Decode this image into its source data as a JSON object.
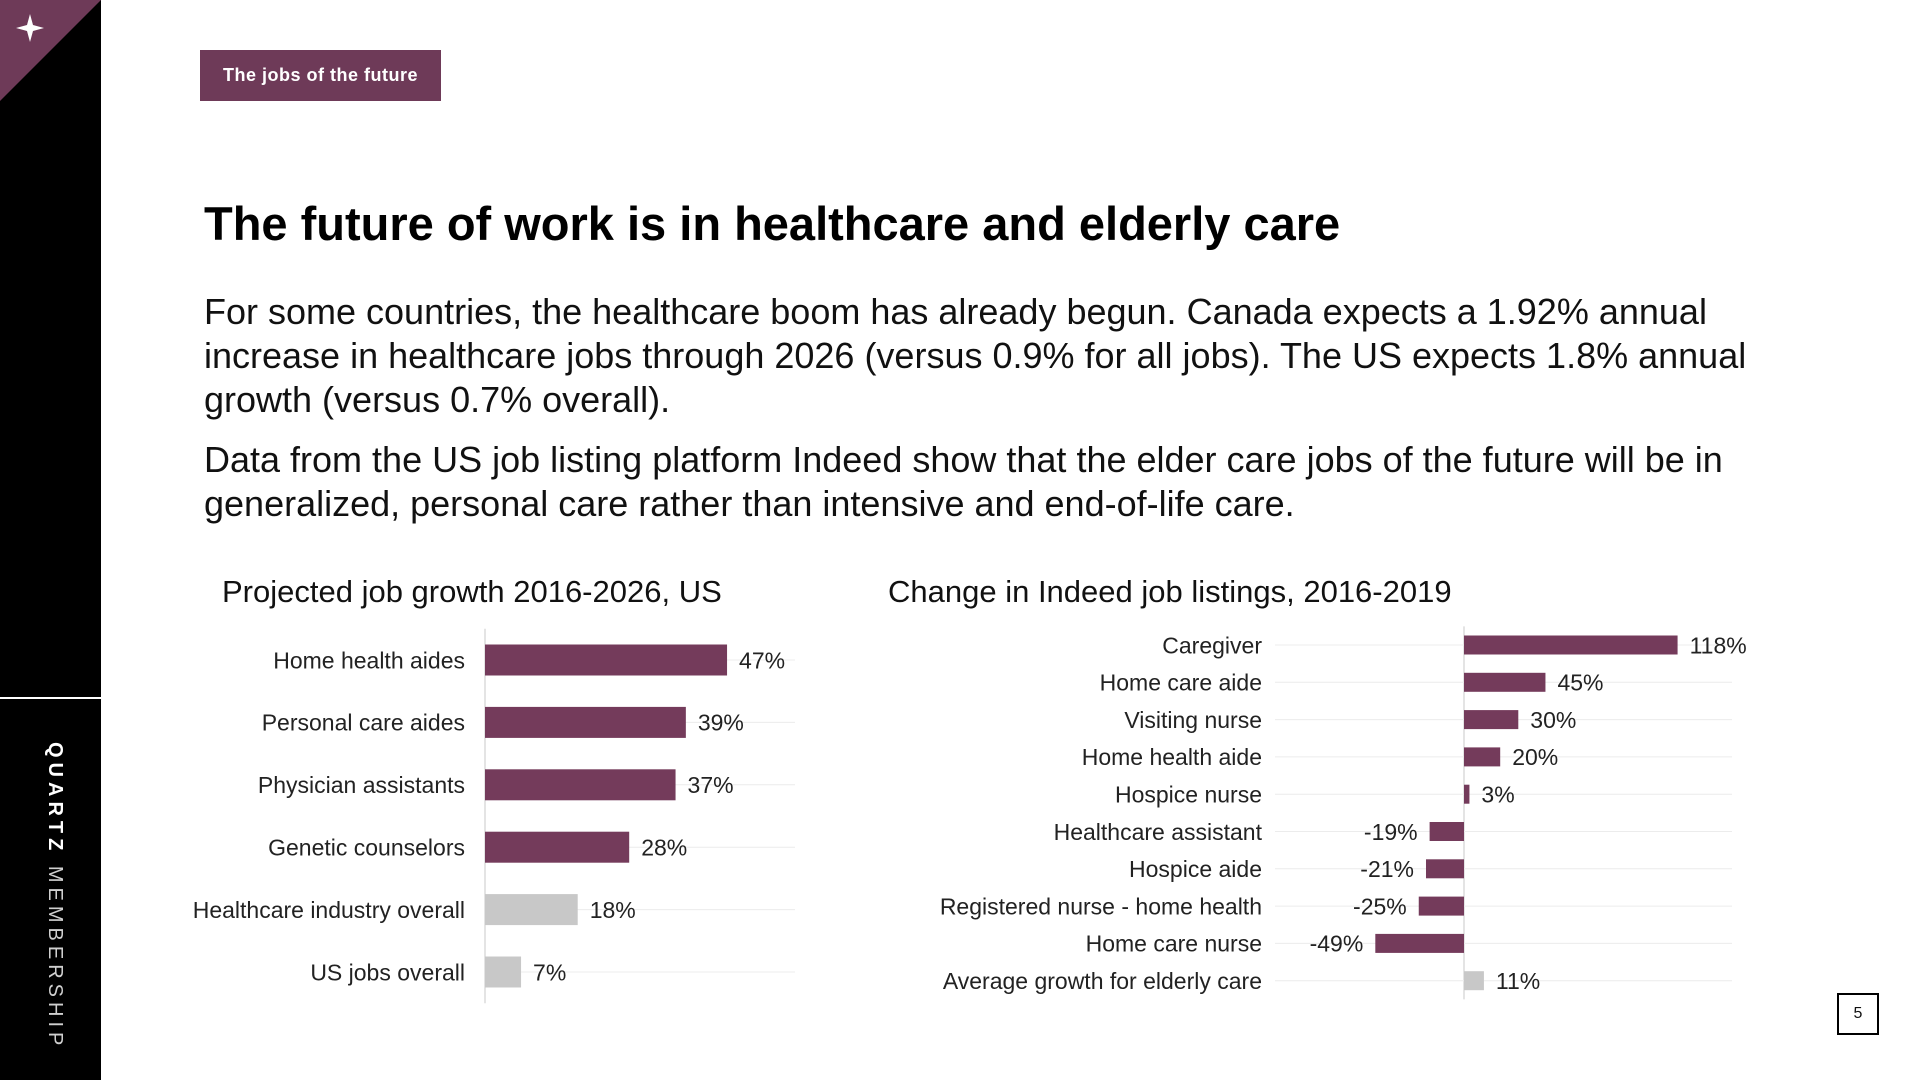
{
  "sidebar": {
    "brand_strong": "QUARTZ",
    "brand_light": "MEMBERSHIP",
    "icon": "sparkle-icon"
  },
  "header": {
    "tag": "The jobs of the future",
    "title": "The future of work is in healthcare and elderly care"
  },
  "body": {
    "para1": "For some countries, the healthcare boom has already begun. Canada expects a 1.92% annual increase in healthcare jobs through 2026 (versus 0.9% for all jobs). The US expects 1.8% annual growth (versus 0.7% overall).",
    "para2": "Data from the US job listing platform Indeed show that the elder care jobs of the future will be in generalized, personal care rather than intensive and end-of-life care."
  },
  "colors": {
    "accent": "#6e3a58",
    "highlight_bar": "#743b5b",
    "neutral_bar": "#c8c8c8",
    "gridline": "#ececec"
  },
  "page_number": "5",
  "chart_data": [
    {
      "type": "bar",
      "orientation": "horizontal",
      "title": "Projected job growth 2016-2026, US",
      "categories": [
        "Home health aides",
        "Personal care aides",
        "Physician assistants",
        "Genetic counselors",
        "Healthcare industry overall",
        "US jobs overall"
      ],
      "values": [
        47,
        39,
        37,
        28,
        18,
        7
      ],
      "value_labels": [
        "47%",
        "39%",
        "37%",
        "28%",
        "18%",
        "7%"
      ],
      "highlight": [
        true,
        true,
        true,
        true,
        false,
        false
      ],
      "xlim": [
        0,
        60
      ],
      "grid": true
    },
    {
      "type": "bar",
      "orientation": "horizontal",
      "title": "Change in Indeed job listings, 2016-2019",
      "categories": [
        "Caregiver",
        "Home care aide",
        "Visiting nurse",
        "Home health aide",
        "Hospice nurse",
        "Healthcare assistant",
        "Hospice aide",
        "Registered nurse - home health",
        "Home care nurse",
        "Average growth for elderly care"
      ],
      "values": [
        118,
        45,
        30,
        20,
        3,
        -19,
        -21,
        -25,
        -49,
        11
      ],
      "value_labels": [
        "118%",
        "45%",
        "30%",
        "20%",
        "3%",
        "-19%",
        "-21%",
        "-25%",
        "-49%",
        "11%"
      ],
      "highlight": [
        true,
        true,
        true,
        true,
        true,
        true,
        true,
        true,
        true,
        false
      ],
      "xlim": [
        -100,
        150
      ],
      "grid": true
    }
  ]
}
